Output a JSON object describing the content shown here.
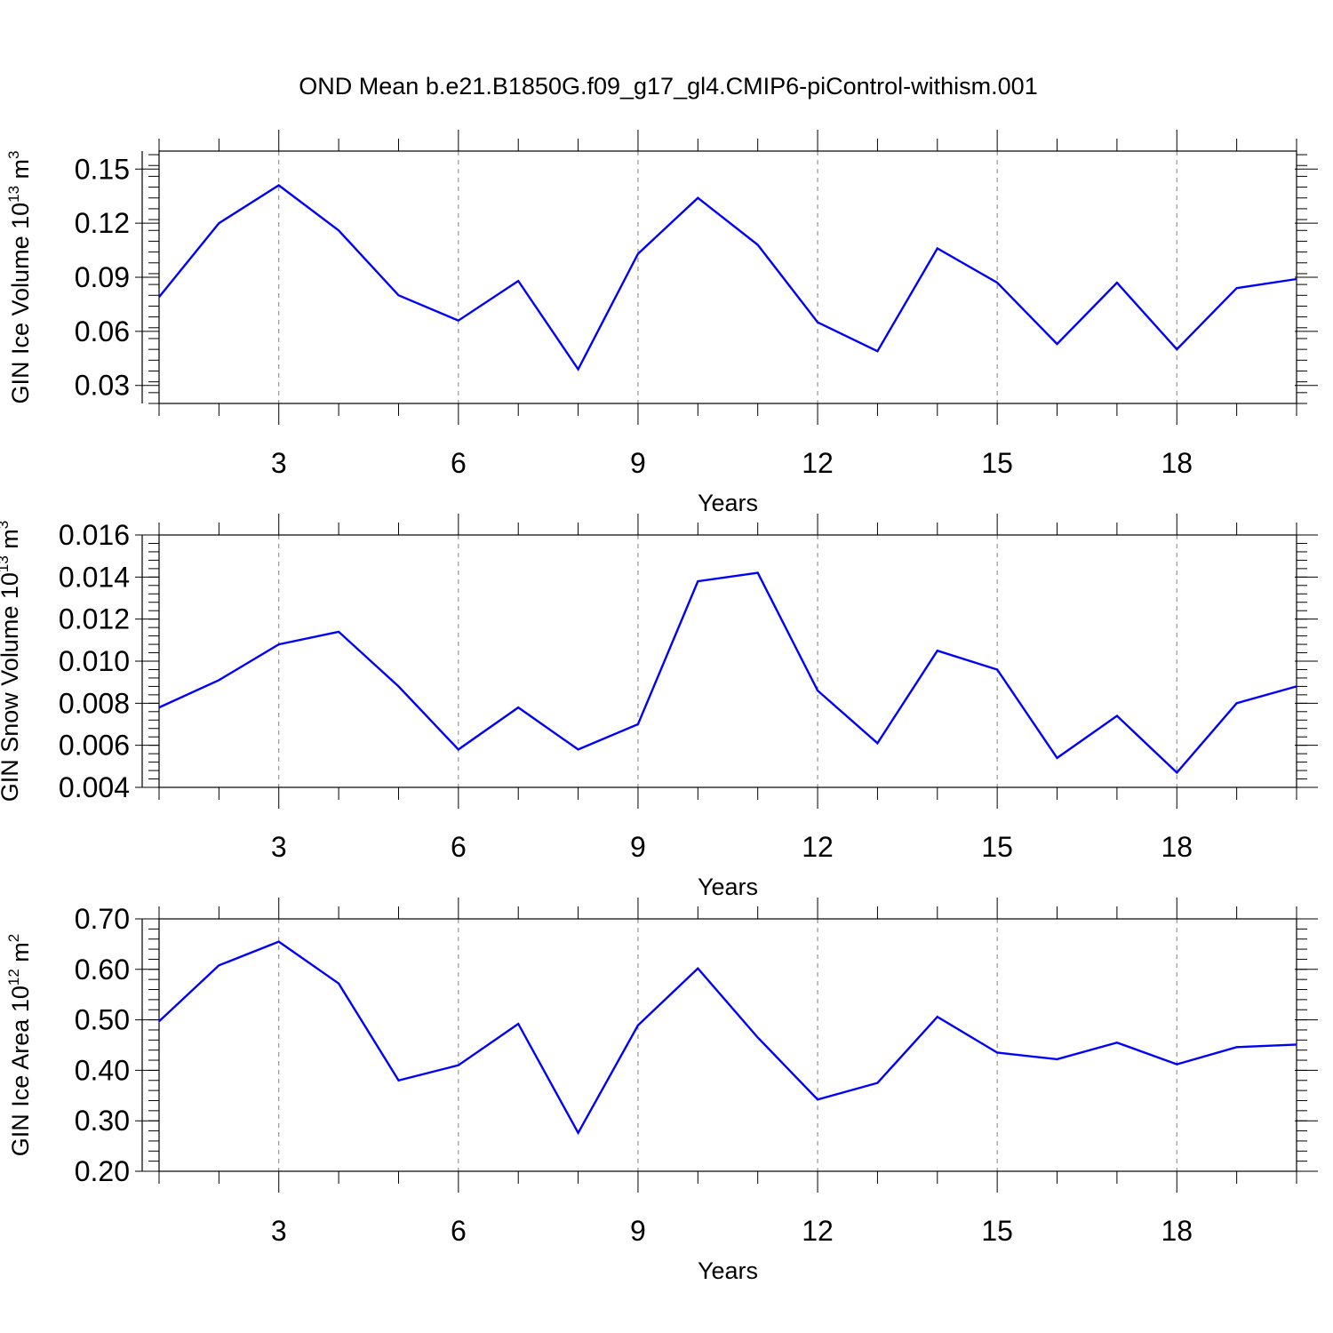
{
  "title": "OND Mean b.e21.B1850G.f09_g17_gl4.CMIP6-piControl-withism.001",
  "colors": {
    "line": "#0000ff",
    "axis": "#000000",
    "grid": "#808080"
  },
  "chart_data": [
    {
      "type": "line",
      "xlabel": "Years",
      "ylabel": {
        "text": "GIN Ice Volume 10",
        "exp1": "13",
        "unit": " m",
        "exp2": "3"
      },
      "xlim": [
        1,
        20
      ],
      "ylim": [
        0.02,
        0.16
      ],
      "xticks": [
        3,
        6,
        9,
        12,
        15,
        18
      ],
      "xtick_labels": [
        "3",
        "6",
        "9",
        "12",
        "15",
        "18"
      ],
      "yticks": [
        0.03,
        0.06,
        0.09,
        0.12,
        0.15
      ],
      "ytick_labels": [
        "0.03",
        "0.06",
        "0.09",
        "0.12",
        "0.15"
      ],
      "yminor_step": 0.006,
      "grid": "vertical dashed at major x ticks",
      "x": [
        1,
        2,
        3,
        4,
        5,
        6,
        7,
        8,
        9,
        10,
        11,
        12,
        13,
        14,
        15,
        16,
        17,
        18,
        19,
        20
      ],
      "series": [
        {
          "values": [
            0.079,
            0.12,
            0.141,
            0.116,
            0.08,
            0.066,
            0.088,
            0.039,
            0.103,
            0.134,
            0.108,
            0.065,
            0.049,
            0.106,
            0.087,
            0.053,
            0.087,
            0.05,
            0.084,
            0.089
          ]
        }
      ]
    },
    {
      "type": "line",
      "xlabel": "Years",
      "ylabel": {
        "text": "GIN Snow Volume 10",
        "exp1": "13",
        "unit": " m",
        "exp2": "3"
      },
      "xlim": [
        1,
        20
      ],
      "ylim": [
        0.004,
        0.016
      ],
      "xticks": [
        3,
        6,
        9,
        12,
        15,
        18
      ],
      "xtick_labels": [
        "3",
        "6",
        "9",
        "12",
        "15",
        "18"
      ],
      "yticks": [
        0.004,
        0.006,
        0.008,
        0.01,
        0.012,
        0.014,
        0.016
      ],
      "ytick_labels": [
        "0.004",
        "0.006",
        "0.008",
        "0.010",
        "0.012",
        "0.014",
        "0.016"
      ],
      "yminor_step": 0.0004,
      "grid": "vertical dashed at major x ticks",
      "x": [
        1,
        2,
        3,
        4,
        5,
        6,
        7,
        8,
        9,
        10,
        11,
        12,
        13,
        14,
        15,
        16,
        17,
        18,
        19,
        20
      ],
      "series": [
        {
          "values": [
            0.0078,
            0.0091,
            0.0108,
            0.0114,
            0.0088,
            0.0058,
            0.0078,
            0.0058,
            0.007,
            0.0138,
            0.0142,
            0.0086,
            0.0061,
            0.0105,
            0.0096,
            0.0054,
            0.0074,
            0.0047,
            0.008,
            0.0088
          ]
        }
      ]
    },
    {
      "type": "line",
      "xlabel": "Years",
      "ylabel": {
        "text": "GIN Ice Area 10",
        "exp1": "12",
        "unit": " m",
        "exp2": "2"
      },
      "xlim": [
        1,
        20
      ],
      "ylim": [
        0.2,
        0.7
      ],
      "xticks": [
        3,
        6,
        9,
        12,
        15,
        18
      ],
      "xtick_labels": [
        "3",
        "6",
        "9",
        "12",
        "15",
        "18"
      ],
      "yticks": [
        0.2,
        0.3,
        0.4,
        0.5,
        0.6,
        0.7
      ],
      "ytick_labels": [
        "0.20",
        "0.30",
        "0.40",
        "0.50",
        "0.60",
        "0.70"
      ],
      "yminor_step": 0.02,
      "grid": "vertical dashed at major x ticks",
      "x": [
        1,
        2,
        3,
        4,
        5,
        6,
        7,
        8,
        9,
        10,
        11,
        12,
        13,
        14,
        15,
        16,
        17,
        18,
        19,
        20
      ],
      "series": [
        {
          "values": [
            0.497,
            0.608,
            0.655,
            0.572,
            0.38,
            0.41,
            0.492,
            0.276,
            0.489,
            0.602,
            0.465,
            0.342,
            0.375,
            0.506,
            0.435,
            0.422,
            0.455,
            0.412,
            0.446,
            0.451
          ]
        }
      ]
    }
  ]
}
